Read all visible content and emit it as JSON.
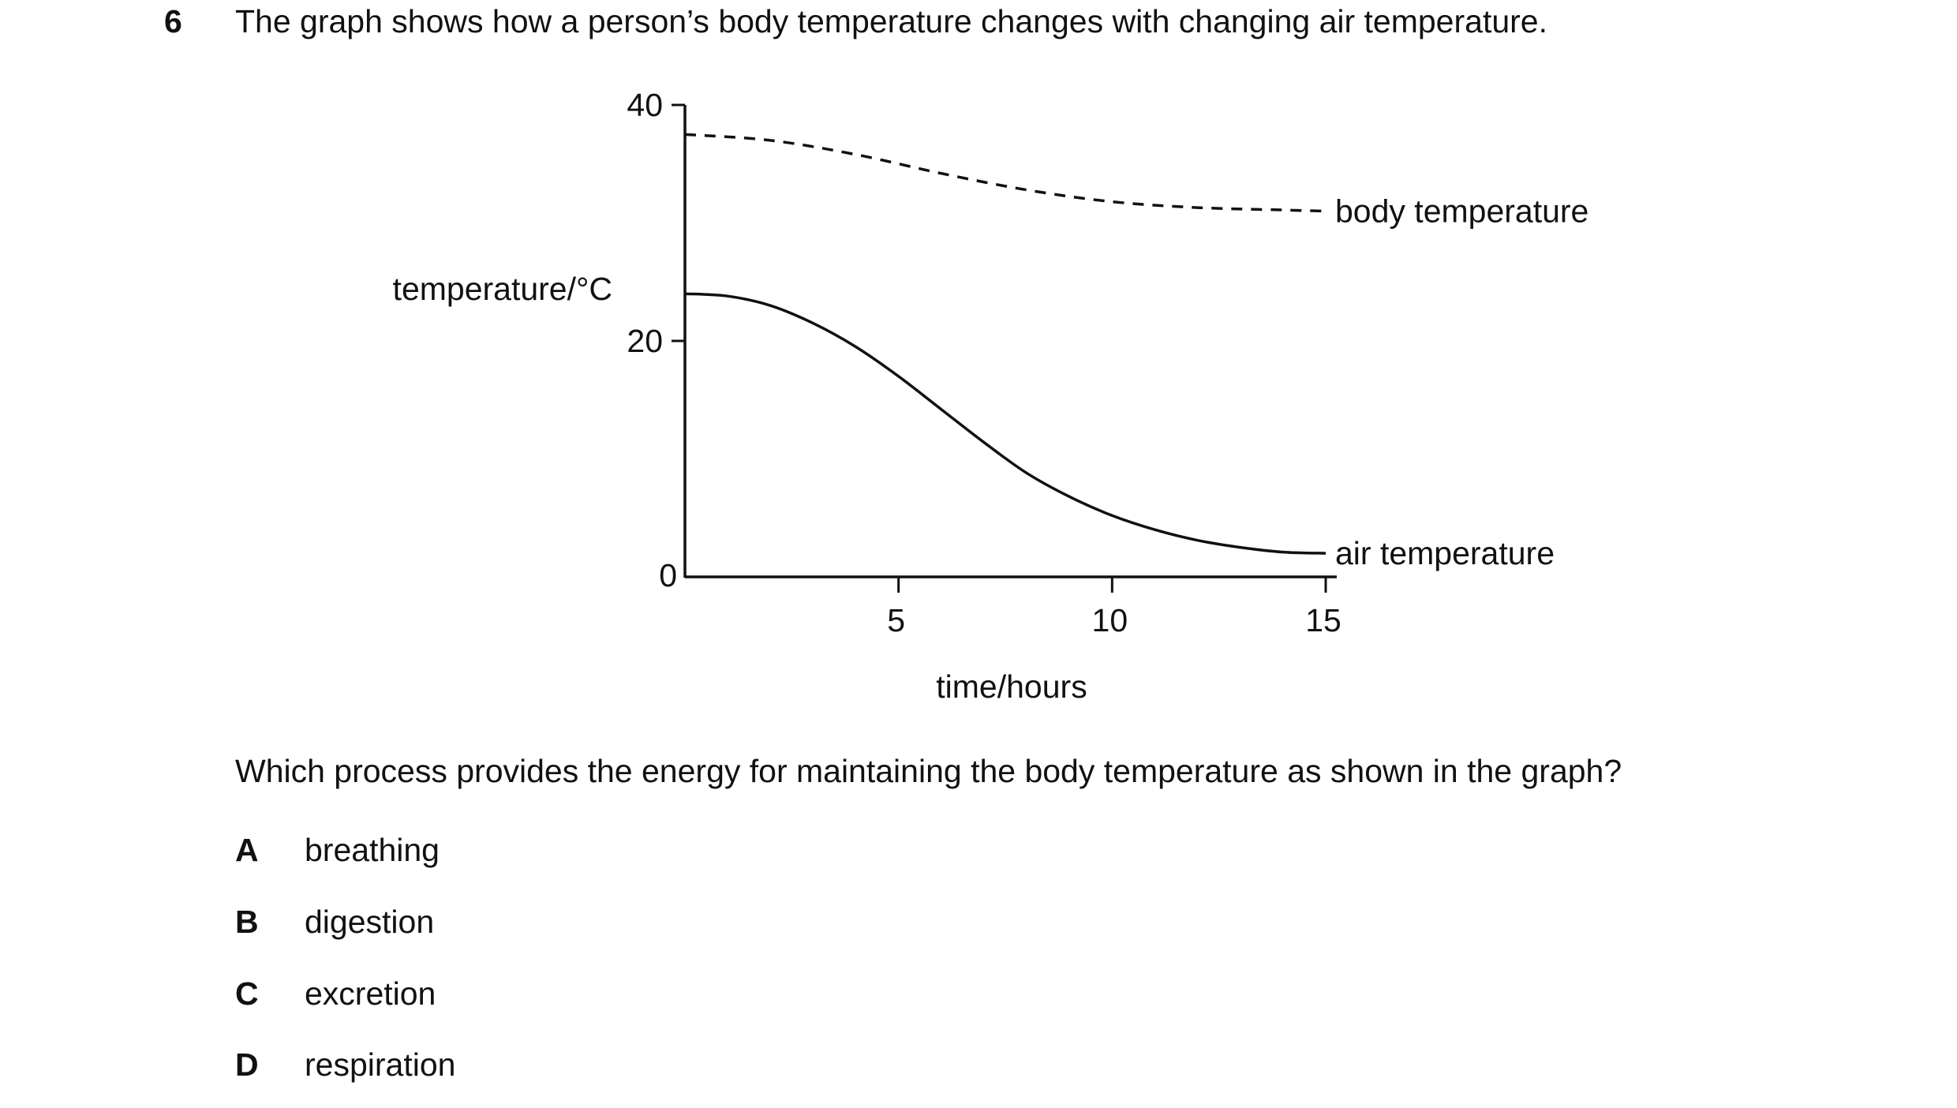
{
  "question": {
    "number": "6",
    "intro": "The graph shows how a person’s body temperature changes with changing air temperature.",
    "prompt": "Which process provides the energy for maintaining the body temperature as shown in the graph?",
    "options": [
      {
        "letter": "A",
        "text": "breathing"
      },
      {
        "letter": "B",
        "text": "digestion"
      },
      {
        "letter": "C",
        "text": "excretion"
      },
      {
        "letter": "D",
        "text": "respiration"
      }
    ]
  },
  "chart_data": {
    "type": "line",
    "title": "",
    "xlabel": "time / hours",
    "ylabel": "temperature / °C",
    "xlim": [
      0,
      15
    ],
    "ylim": [
      0,
      40
    ],
    "x_ticks": [
      5,
      10,
      15
    ],
    "y_ticks": [
      0,
      20,
      40
    ],
    "grid": false,
    "legend": "none",
    "series": [
      {
        "name": "body temperature",
        "style": "dashed",
        "x": [
          0,
          2,
          4,
          6,
          8,
          10,
          12,
          14,
          15
        ],
        "y": [
          37.5,
          37,
          35.8,
          34.2,
          32.8,
          31.8,
          31.3,
          31.1,
          31
        ]
      },
      {
        "name": "air temperature",
        "style": "solid",
        "x": [
          0,
          1,
          2,
          3,
          4,
          5,
          6,
          7,
          8,
          9,
          10,
          11,
          12,
          13,
          14,
          15
        ],
        "y": [
          24,
          23.8,
          23,
          21.5,
          19.5,
          17,
          14.2,
          11.4,
          8.8,
          6.8,
          5.2,
          4,
          3.1,
          2.5,
          2.1,
          2
        ]
      }
    ]
  }
}
